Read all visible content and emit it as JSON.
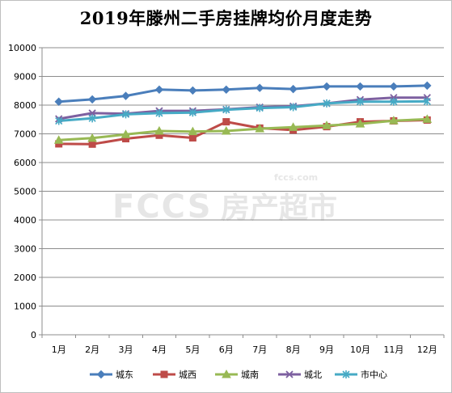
{
  "chart_data": {
    "type": "line",
    "title": "2019年滕州二手房挂牌均价月度走势",
    "xlabel": "",
    "ylabel": "",
    "categories": [
      "1月",
      "2月",
      "3月",
      "4月",
      "5月",
      "6月",
      "7月",
      "8月",
      "9月",
      "10月",
      "11月",
      "12月"
    ],
    "ylim": [
      0,
      10000
    ],
    "yticks": [
      0,
      1000,
      2000,
      3000,
      4000,
      5000,
      6000,
      7000,
      8000,
      9000,
      10000
    ],
    "grid": true,
    "legend_position": "bottom",
    "series": [
      {
        "name": "城东",
        "color": "#4a7ebb",
        "marker": "diamond",
        "values": [
          8120,
          8200,
          8320,
          8540,
          8510,
          8540,
          8600,
          8560,
          8650,
          8650,
          8650,
          8680
        ]
      },
      {
        "name": "城西",
        "color": "#be4b48",
        "marker": "square",
        "values": [
          6650,
          6640,
          6830,
          6950,
          6860,
          7420,
          7200,
          7130,
          7250,
          7420,
          7450,
          7480
        ]
      },
      {
        "name": "城南",
        "color": "#98b954",
        "marker": "triangle",
        "values": [
          6780,
          6850,
          6980,
          7100,
          7080,
          7100,
          7180,
          7230,
          7290,
          7350,
          7460,
          7510
        ]
      },
      {
        "name": "城北",
        "color": "#7d60a0",
        "marker": "x",
        "values": [
          7520,
          7720,
          7700,
          7800,
          7800,
          7850,
          7930,
          7960,
          8060,
          8190,
          8260,
          8260
        ]
      },
      {
        "name": "市中心",
        "color": "#46aac5",
        "marker": "star",
        "values": [
          7450,
          7540,
          7680,
          7720,
          7740,
          7840,
          7900,
          7930,
          8060,
          8120,
          8120,
          8130
        ]
      }
    ]
  },
  "watermark": {
    "logo_text": "FCCS",
    "brand_text": "房产超市",
    "domain_text": "fccs.com"
  }
}
